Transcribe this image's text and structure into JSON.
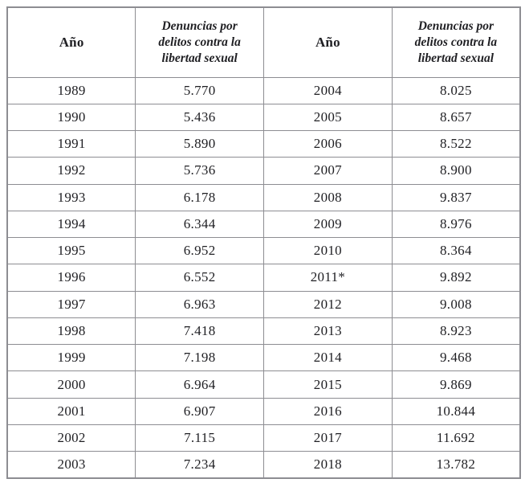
{
  "table": {
    "headers": {
      "year_label": "Año",
      "value_label": "Denuncias por delitos contra la libertad sexual"
    },
    "rows": [
      {
        "year_left": "1989",
        "value_left": "5.770",
        "year_right": "2004",
        "value_right": "8.025"
      },
      {
        "year_left": "1990",
        "value_left": "5.436",
        "year_right": "2005",
        "value_right": "8.657"
      },
      {
        "year_left": "1991",
        "value_left": "5.890",
        "year_right": "2006",
        "value_right": "8.522"
      },
      {
        "year_left": "1992",
        "value_left": "5.736",
        "year_right": "2007",
        "value_right": "8.900"
      },
      {
        "year_left": "1993",
        "value_left": "6.178",
        "year_right": "2008",
        "value_right": "9.837"
      },
      {
        "year_left": "1994",
        "value_left": "6.344",
        "year_right": "2009",
        "value_right": "8.976"
      },
      {
        "year_left": "1995",
        "value_left": "6.952",
        "year_right": "2010",
        "value_right": "8.364"
      },
      {
        "year_left": "1996",
        "value_left": "6.552",
        "year_right": "2011*",
        "value_right": "9.892"
      },
      {
        "year_left": "1997",
        "value_left": "6.963",
        "year_right": "2012",
        "value_right": "9.008"
      },
      {
        "year_left": "1998",
        "value_left": "7.418",
        "year_right": "2013",
        "value_right": "8.923"
      },
      {
        "year_left": "1999",
        "value_left": "7.198",
        "year_right": "2014",
        "value_right": "9.468"
      },
      {
        "year_left": "2000",
        "value_left": "6.964",
        "year_right": "2015",
        "value_right": "9.869"
      },
      {
        "year_left": "2001",
        "value_left": "6.907",
        "year_right": "2016",
        "value_right": "10.844"
      },
      {
        "year_left": "2002",
        "value_left": "7.115",
        "year_right": "2017",
        "value_right": "11.692"
      },
      {
        "year_left": "2003",
        "value_left": "7.234",
        "year_right": "2018",
        "value_right": "13.782"
      }
    ],
    "colors": {
      "border": "#8d8d92",
      "text": "#1f1f23",
      "background": "#ffffff"
    }
  }
}
